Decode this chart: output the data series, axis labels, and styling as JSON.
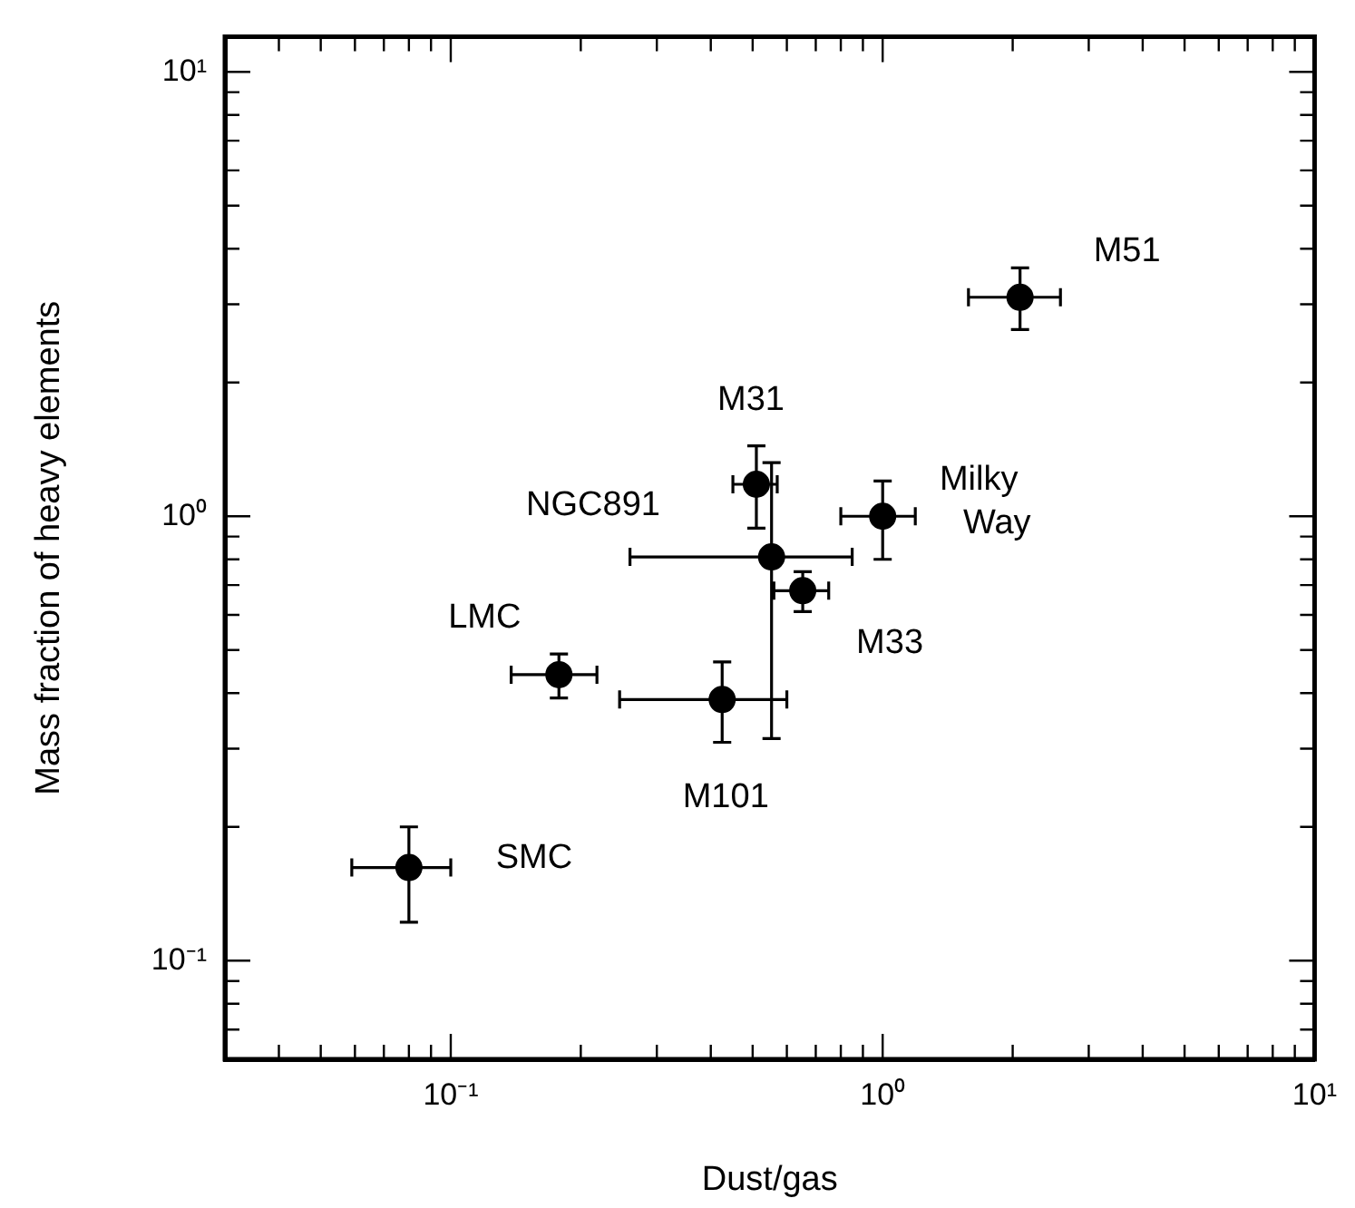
{
  "chart_data": {
    "type": "scatter",
    "xlabel": "Dust/gas",
    "ylabel": "Mass fraction of heavy elements",
    "log": "xy",
    "grid": false,
    "legend": false,
    "marker": "circle",
    "xlim": [
      0.03,
      10
    ],
    "ylim": [
      0.06,
      12
    ],
    "xticks": [
      {
        "value": 0.03,
        "label": null
      },
      {
        "value": 0.04,
        "label": null
      },
      {
        "value": 0.05,
        "label": null
      },
      {
        "value": 0.06,
        "label": null
      },
      {
        "value": 0.07,
        "label": null
      },
      {
        "value": 0.08,
        "label": null
      },
      {
        "value": 0.09,
        "label": null
      },
      {
        "value": 0.1,
        "label": "10⁻¹"
      },
      {
        "value": 0.2,
        "label": null
      },
      {
        "value": 0.3,
        "label": null
      },
      {
        "value": 0.4,
        "label": null
      },
      {
        "value": 0.5,
        "label": null
      },
      {
        "value": 0.6,
        "label": null
      },
      {
        "value": 0.7,
        "label": null
      },
      {
        "value": 0.8,
        "label": null
      },
      {
        "value": 0.9,
        "label": null
      },
      {
        "value": 1,
        "label": "10⁰"
      },
      {
        "value": 2,
        "label": null
      },
      {
        "value": 3,
        "label": null
      },
      {
        "value": 4,
        "label": null
      },
      {
        "value": 5,
        "label": null
      },
      {
        "value": 6,
        "label": null
      },
      {
        "value": 7,
        "label": null
      },
      {
        "value": 8,
        "label": null
      },
      {
        "value": 9,
        "label": null
      },
      {
        "value": 10,
        "label": "10¹"
      }
    ],
    "yticks": [
      {
        "value": 0.06,
        "label": null
      },
      {
        "value": 0.07,
        "label": null
      },
      {
        "value": 0.08,
        "label": null
      },
      {
        "value": 0.09,
        "label": null
      },
      {
        "value": 0.1,
        "label": "10⁻¹"
      },
      {
        "value": 0.2,
        "label": null
      },
      {
        "value": 0.3,
        "label": null
      },
      {
        "value": 0.4,
        "label": null
      },
      {
        "value": 0.5,
        "label": null
      },
      {
        "value": 0.6,
        "label": null
      },
      {
        "value": 0.7,
        "label": null
      },
      {
        "value": 0.8,
        "label": null
      },
      {
        "value": 0.9,
        "label": null
      },
      {
        "value": 1,
        "label": "10⁰"
      },
      {
        "value": 2,
        "label": null
      },
      {
        "value": 3,
        "label": null
      },
      {
        "value": 4,
        "label": null
      },
      {
        "value": 5,
        "label": null
      },
      {
        "value": 6,
        "label": null
      },
      {
        "value": 7,
        "label": null
      },
      {
        "value": 8,
        "label": null
      },
      {
        "value": 9,
        "label": null
      },
      {
        "value": 10,
        "label": "10¹"
      }
    ],
    "series": [
      {
        "color": "#000000",
        "x": [
          2.08,
          0.51,
          0.553,
          1.0,
          0.653,
          0.178,
          0.425,
          0.08
        ],
        "values": [
          3.11,
          1.18,
          0.81,
          1.0,
          0.68,
          0.44,
          0.387,
          0.162
        ],
        "xerrors": [
          [
            1.58,
            2.58
          ],
          [
            0.45,
            0.57
          ],
          [
            0.26,
            0.85
          ],
          [
            0.8,
            1.19
          ],
          [
            0.56,
            0.75
          ],
          [
            0.138,
            0.218
          ],
          [
            0.246,
            0.6
          ],
          [
            0.059,
            0.1
          ]
        ],
        "errors": [
          [
            2.63,
            3.62
          ],
          [
            0.94,
            1.44
          ],
          [
            0.316,
            1.32
          ],
          [
            0.8,
            1.2
          ],
          [
            0.61,
            0.75
          ],
          [
            0.39,
            0.49
          ],
          [
            0.31,
            0.47
          ],
          [
            0.122,
            0.2
          ]
        ]
      }
    ],
    "annotations": [
      {
        "text": "M51",
        "x": 2.08,
        "y": 3.11
      },
      {
        "text": "M31",
        "x": 0.51,
        "y": 1.18
      },
      {
        "text": "NGC891",
        "x": 0.51,
        "y": 1.18
      },
      {
        "text": "Milky Way",
        "x": 1.0,
        "y": 1.0
      },
      {
        "text": "M33",
        "x": 0.653,
        "y": 0.68
      },
      {
        "text": "LMC",
        "x": 0.178,
        "y": 0.44
      },
      {
        "text": "M101",
        "x": 0.425,
        "y": 0.387
      },
      {
        "text": "SMC",
        "x": 0.08,
        "y": 0.162
      }
    ]
  }
}
